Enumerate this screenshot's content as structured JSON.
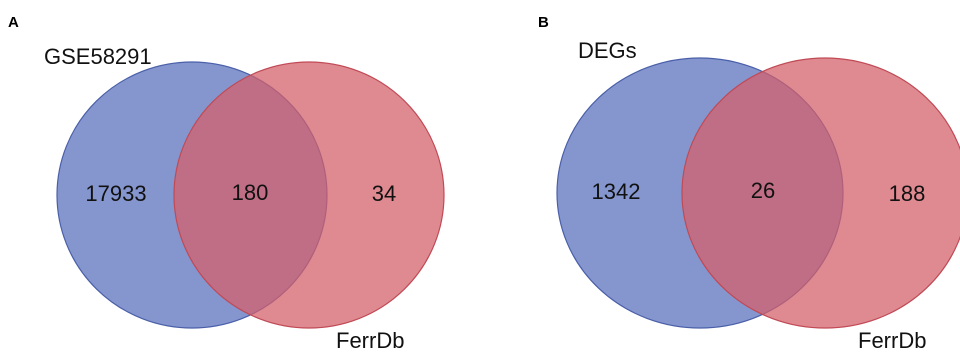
{
  "panels": [
    {
      "letter": "A",
      "set_a": {
        "label": "GSE58291",
        "color": "#6a7fc4"
      },
      "set_b": {
        "label": "FerrDb",
        "color": "#d4606a"
      },
      "counts": {
        "only_a": "17933",
        "both": "180",
        "only_b": "34"
      }
    },
    {
      "letter": "B",
      "set_a": {
        "label": "DEGs",
        "color": "#6a7fc4"
      },
      "set_b": {
        "label": "FerrDb",
        "color": "#d4606a"
      },
      "counts": {
        "only_a": "1342",
        "both": "26",
        "only_b": "188"
      }
    }
  ]
}
